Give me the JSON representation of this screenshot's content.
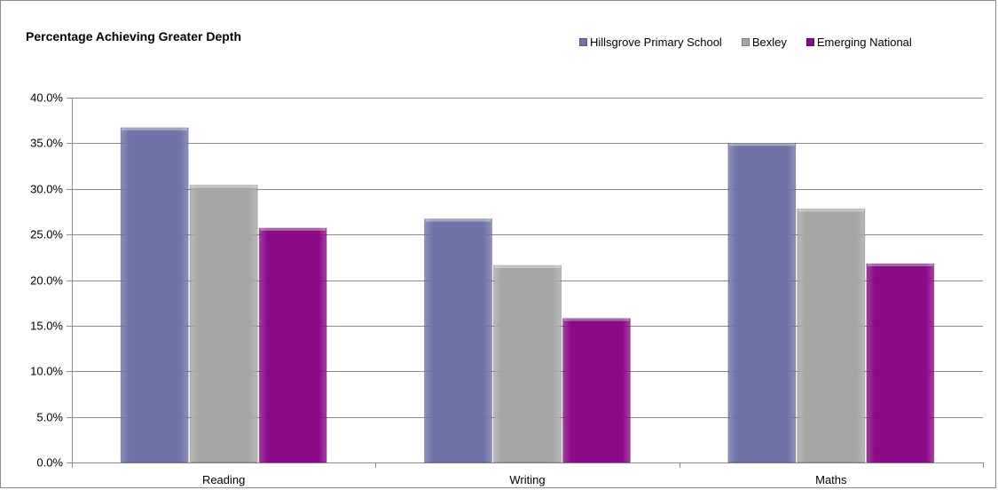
{
  "chart_data": {
    "type": "bar",
    "title": "Percentage Achieving Greater Depth",
    "categories": [
      "Reading",
      "Writing",
      "Maths"
    ],
    "series": [
      {
        "name": "Hillsgrove Primary School",
        "color": "#6f73a8",
        "values": [
          36.7,
          26.7,
          35.0
        ]
      },
      {
        "name": "Bexley",
        "color": "#a6a6a6",
        "values": [
          30.4,
          21.6,
          27.8
        ]
      },
      {
        "name": "Emerging National",
        "color": "#8b0a88",
        "values": [
          25.7,
          15.8,
          21.8
        ]
      }
    ],
    "ylim": [
      0,
      40
    ],
    "y_ticks": [
      "0.0%",
      "5.0%",
      "10.0%",
      "15.0%",
      "20.0%",
      "25.0%",
      "30.0%",
      "35.0%",
      "40.0%"
    ],
    "xlabel": "",
    "ylabel": "",
    "grid": true,
    "legend_position": "top-right"
  }
}
